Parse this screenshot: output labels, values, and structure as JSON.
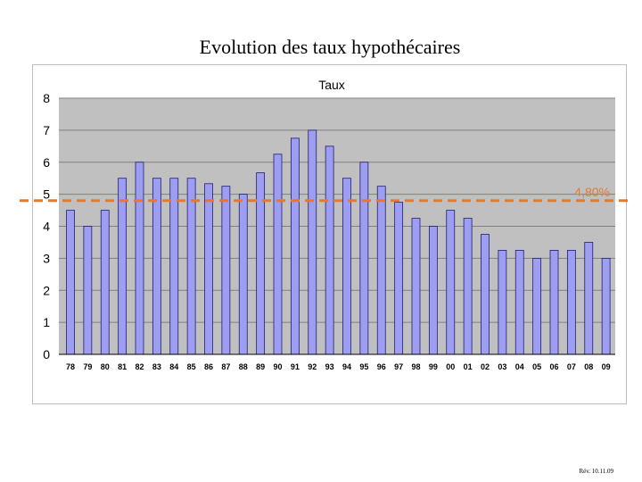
{
  "slide": {
    "title": "Evolution des taux hypothécaires",
    "footer": "Rév. 10.11.09"
  },
  "chart_data": {
    "type": "bar",
    "title": "Taux",
    "xlabel": "",
    "ylabel": "",
    "ylim": [
      0,
      8
    ],
    "yticks": [
      0,
      1,
      2,
      3,
      4,
      5,
      6,
      7,
      8
    ],
    "grid": true,
    "legend": "none",
    "categories": [
      "78",
      "79",
      "80",
      "81",
      "82",
      "83",
      "84",
      "85",
      "86",
      "87",
      "88",
      "89",
      "90",
      "91",
      "92",
      "93",
      "94",
      "95",
      "96",
      "97",
      "98",
      "99",
      "00",
      "01",
      "02",
      "03",
      "04",
      "05",
      "06",
      "07",
      "08",
      "09"
    ],
    "values": [
      4.5,
      4.0,
      4.5,
      5.5,
      6.0,
      5.5,
      5.5,
      5.5,
      5.33,
      5.25,
      5.0,
      5.67,
      6.25,
      6.75,
      7.0,
      6.5,
      5.5,
      6.0,
      5.25,
      4.75,
      4.25,
      4.0,
      4.5,
      4.25,
      3.75,
      3.25,
      3.25,
      3.0,
      3.25,
      3.25,
      3.5,
      3.0
    ],
    "reference_line": {
      "value": 4.8,
      "label": "4,80%"
    },
    "colors": {
      "bar_fill": "#9d9ef1",
      "bar_stroke": "#1e1e6e",
      "plot_background": "#c0c0c0",
      "gridline": "#808080",
      "reference_line": "#e8782c"
    }
  }
}
